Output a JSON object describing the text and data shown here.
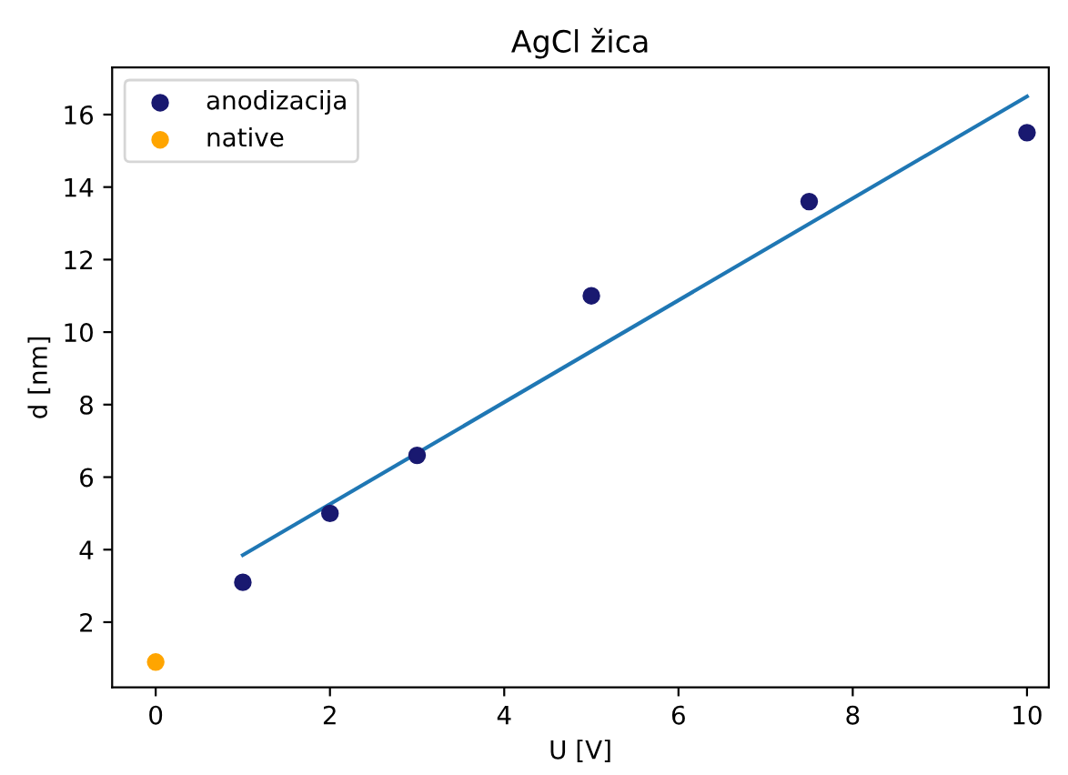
{
  "chart_data": {
    "type": "scatter",
    "title": "AgCl žica",
    "xlabel": "U [V]",
    "ylabel": "d [nm]",
    "series": [
      {
        "name": "anodizacija",
        "marker": "circle",
        "color": "#191970",
        "x": [
          1,
          2,
          3,
          5,
          7.5,
          10
        ],
        "values": [
          3.1,
          5.0,
          6.6,
          11.0,
          13.6,
          15.5
        ]
      },
      {
        "name": "native",
        "marker": "circle",
        "color": "#ffa500",
        "x": [
          0
        ],
        "values": [
          0.9
        ]
      },
      {
        "type": "line",
        "marker": "none",
        "color": "#1f77b4",
        "x": [
          1,
          10
        ],
        "values": [
          3.85,
          16.5
        ]
      }
    ],
    "xlim": [
      -0.5,
      10.25
    ],
    "ylim": [
      0.2,
      17.3
    ],
    "xticks": [
      0,
      2,
      4,
      6,
      8,
      10
    ],
    "yticks": [
      2,
      4,
      6,
      8,
      10,
      12,
      14,
      16
    ],
    "legend": "top left",
    "grid": false
  }
}
